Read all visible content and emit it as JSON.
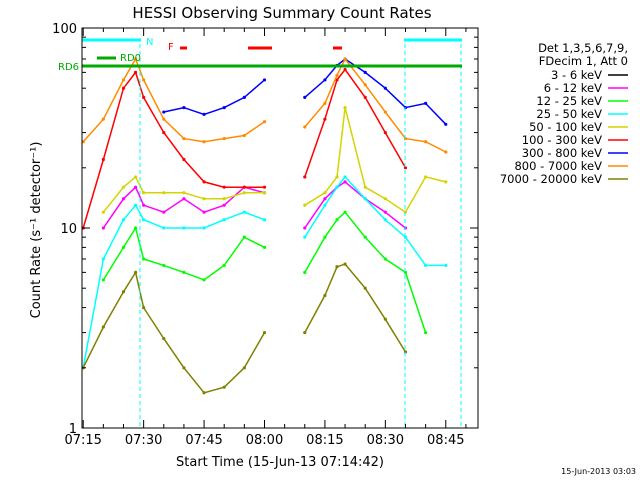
{
  "chart_data": {
    "type": "line",
    "title": "HESSI Observing Summary Count Rates",
    "xlabel": "Start Time (15-Jun-13 07:14:42)",
    "ylabel": "Count Rate (s⁻¹ detector⁻¹)",
    "yscale": "log",
    "ylim": [
      1,
      100
    ],
    "xlim": [
      "07:14:42",
      "08:53"
    ],
    "grid": false,
    "x_ticks": [
      "07:15",
      "07:30",
      "07:45",
      "08:00",
      "08:15",
      "08:30",
      "08:45"
    ],
    "y_ticks": [
      "1",
      "10",
      "100"
    ],
    "legend_title": [
      "Det 1,3,5,6,7,9,",
      "FDecim 1, Att 0"
    ],
    "legend_position": "right",
    "x": [
      "07:15",
      "07:20",
      "07:25",
      "07:28",
      "07:30",
      "07:35",
      "07:40",
      "07:45",
      "07:50",
      "07:55",
      "08:00",
      "08:05",
      "08:10",
      "08:15",
      "08:18",
      "08:20",
      "08:25",
      "08:30",
      "08:35",
      "08:40",
      "08:45",
      "08:50"
    ],
    "series": [
      {
        "name": "3 - 6 keV",
        "color": "#000000",
        "values": [
          null,
          null,
          null,
          null,
          null,
          null,
          null,
          null,
          null,
          null,
          null,
          null,
          null,
          null,
          null,
          null,
          null,
          null,
          null,
          null,
          null,
          null
        ]
      },
      {
        "name": "6 - 12 keV",
        "color": "#ff00ff",
        "values": [
          null,
          10,
          14,
          16,
          13,
          12,
          14,
          12,
          13,
          16,
          15,
          null,
          10,
          14,
          16,
          17,
          14,
          12,
          10,
          null,
          null,
          null
        ]
      },
      {
        "name": "12 - 25 keV",
        "color": "#00ff00",
        "values": [
          null,
          5.5,
          8,
          10,
          7,
          6.5,
          6,
          5.5,
          6.5,
          9,
          8,
          null,
          6,
          9,
          11,
          12,
          9,
          7,
          6,
          3,
          null,
          null
        ]
      },
      {
        "name": "25 - 50 keV",
        "color": "#00ffff",
        "values": [
          2,
          7,
          11,
          13,
          11,
          10,
          10,
          10,
          11,
          12,
          11,
          null,
          9,
          13,
          16,
          18,
          14,
          11,
          9,
          6.5,
          6.5,
          null
        ]
      },
      {
        "name": "50 - 100 keV",
        "color": "#d4d400",
        "values": [
          null,
          12,
          16,
          18,
          15,
          15,
          15,
          14,
          14,
          15,
          15,
          null,
          13,
          15,
          18,
          40,
          16,
          14,
          12,
          18,
          17,
          null
        ]
      },
      {
        "name": "100 - 300 keV",
        "color": "#ff0000",
        "values": [
          10,
          22,
          50,
          60,
          45,
          30,
          22,
          17,
          16,
          16,
          16,
          null,
          18,
          35,
          55,
          62,
          45,
          30,
          20,
          null,
          null,
          null
        ]
      },
      {
        "name": "300 - 800 keV",
        "color": "#0000ff",
        "values": [
          null,
          null,
          null,
          null,
          null,
          38,
          40,
          37,
          40,
          45,
          55,
          null,
          45,
          55,
          65,
          70,
          60,
          50,
          40,
          42,
          33,
          null
        ]
      },
      {
        "name": "800 - 7000 keV",
        "color": "#ff8c00",
        "values": [
          27,
          35,
          55,
          70,
          55,
          35,
          28,
          27,
          28,
          29,
          34,
          null,
          32,
          42,
          58,
          70,
          52,
          38,
          28,
          27,
          24,
          null
        ]
      },
      {
        "name": "7000 - 20000 keV",
        "color": "#808000",
        "values": [
          2,
          3.2,
          4.8,
          6,
          4,
          2.8,
          2,
          1.5,
          1.6,
          2,
          3,
          null,
          3,
          4.6,
          6.4,
          6.6,
          5,
          3.5,
          2.4,
          null,
          null,
          null
        ]
      }
    ],
    "annotations": [
      {
        "label": "RD0",
        "color": "#00aa00"
      },
      {
        "label": "RD6",
        "color": "#00aa00"
      },
      {
        "label": "N",
        "color": "#00ffff"
      },
      {
        "label": "F",
        "color": "#ff0000"
      }
    ]
  },
  "footer": {
    "timestamp": "15-Jun-2013 03:03"
  }
}
